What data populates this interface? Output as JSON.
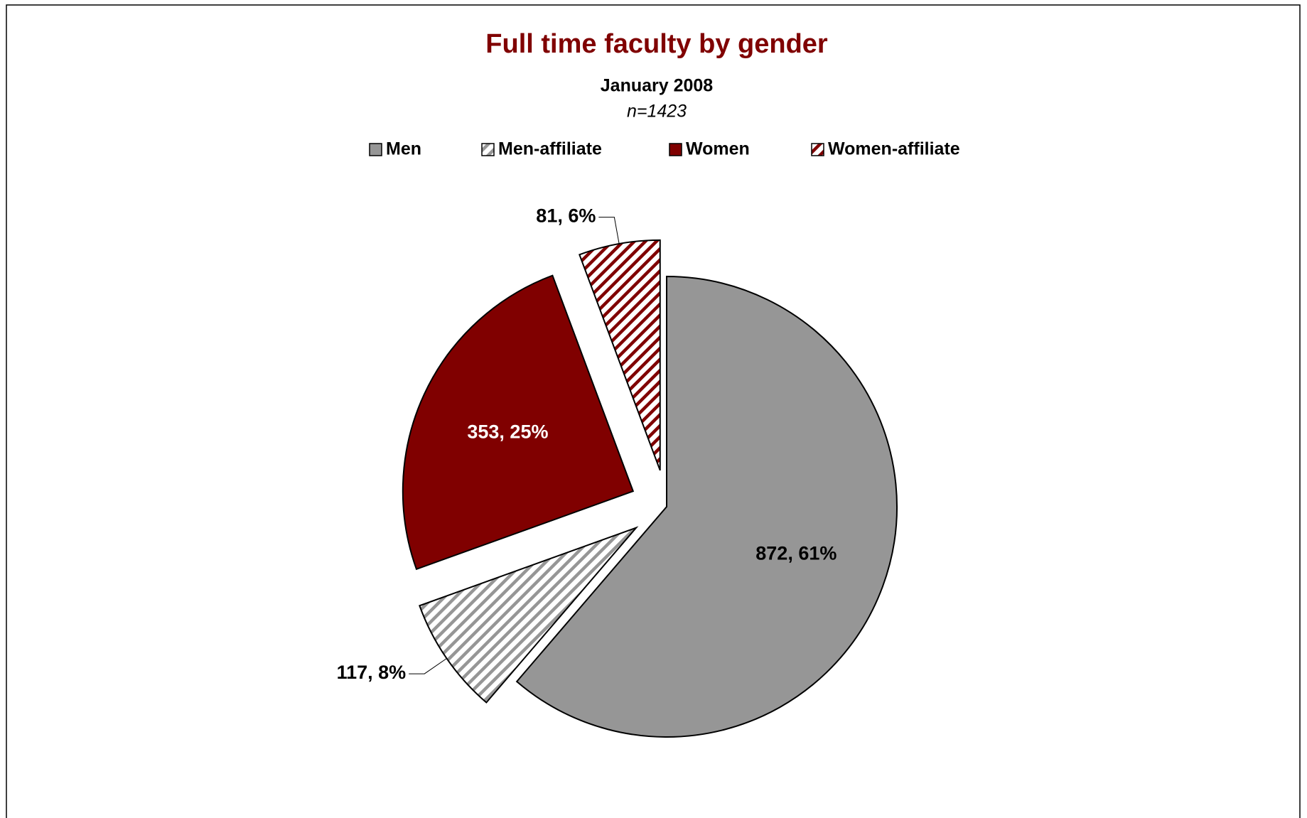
{
  "chart_data": {
    "type": "pie",
    "title": "Full time faculty by gender",
    "subtitle": "January 2008",
    "annotation": "n=1423",
    "categories": [
      "Men",
      "Men-affiliate",
      "Women",
      "Women-affiliate"
    ],
    "values": [
      872,
      117,
      353,
      81
    ],
    "value_labels": [
      "872, 61%",
      "117, 8%",
      "353, 25%",
      "81, 6%"
    ],
    "colors": [
      "#969696",
      "#969696",
      "#800000",
      "#800000"
    ],
    "hatched": [
      false,
      true,
      false,
      true
    ],
    "legend": "top"
  }
}
